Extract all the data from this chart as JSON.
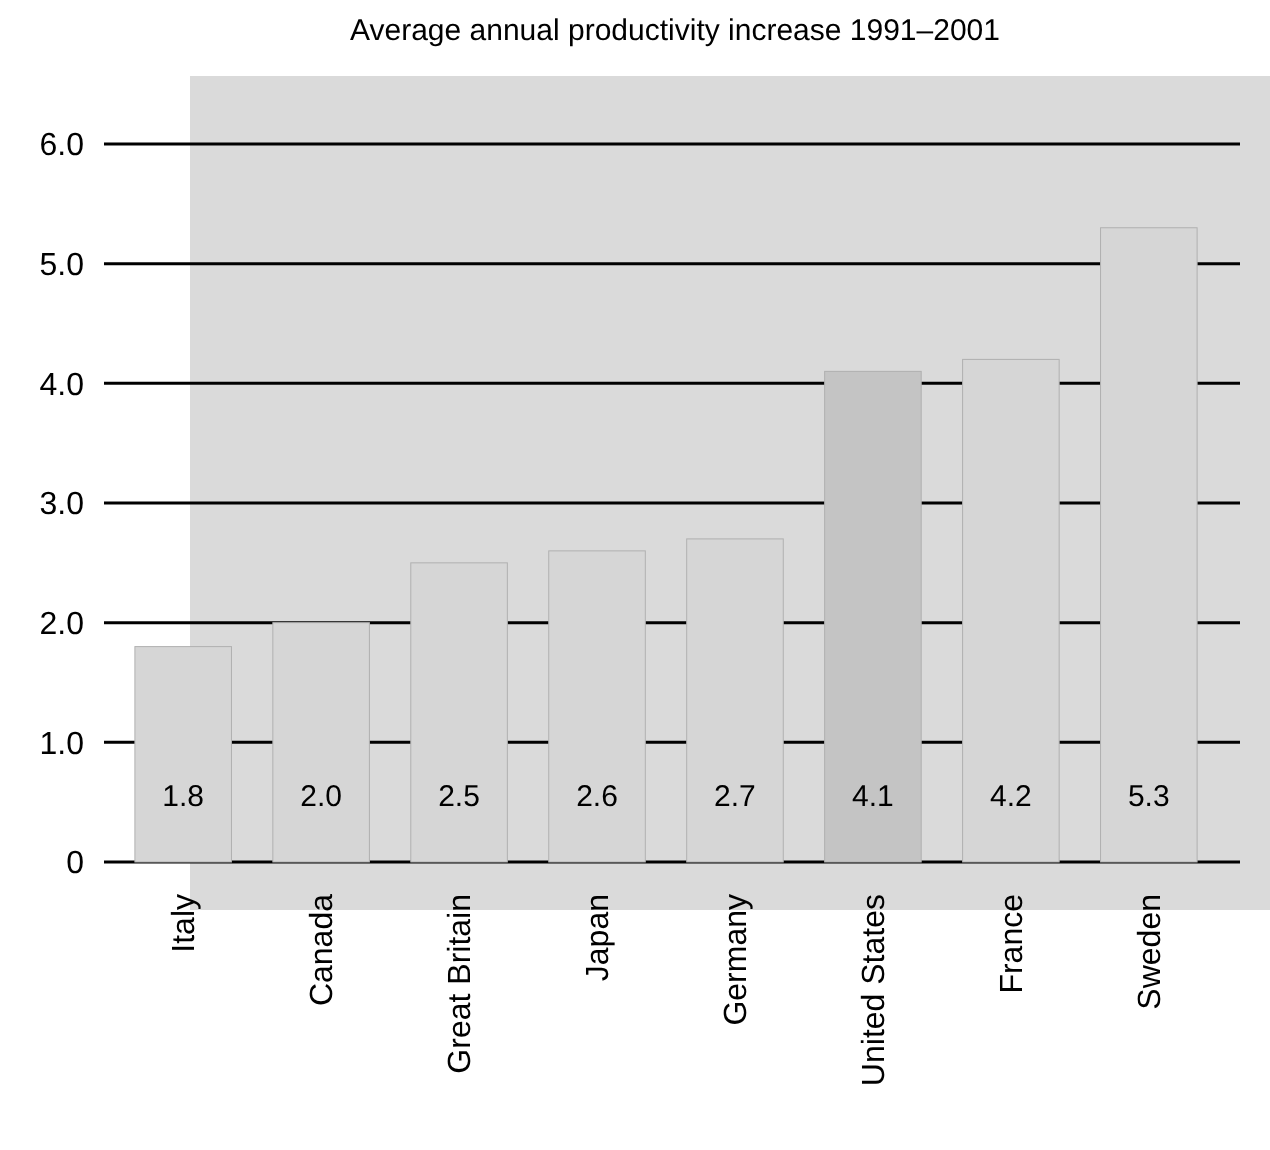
{
  "chart_data": {
    "type": "bar",
    "title": "Average annual productivity increase 1991–2001",
    "categories": [
      "Italy",
      "Canada",
      "Great Britain",
      "Japan",
      "Germany",
      "United States",
      "France",
      "Sweden"
    ],
    "values": [
      1.8,
      2.0,
      2.5,
      2.6,
      2.7,
      4.1,
      4.2,
      5.3
    ],
    "colors": [
      "#d6d6d6",
      "#d6d6d6",
      "#d6d6d6",
      "#d6d6d6",
      "#d6d6d6",
      "#c4c4c4",
      "#d6d6d6",
      "#d6d6d6"
    ],
    "value_labels": [
      "1.8",
      "2.0",
      "2.5",
      "2.6",
      "2.7",
      "4.1",
      "4.2",
      "5.3"
    ],
    "ylim": [
      0,
      6
    ],
    "yticks": [
      {
        "value": 0,
        "label": "0"
      },
      {
        "value": 1,
        "label": "1.0"
      },
      {
        "value": 2,
        "label": "2.0"
      },
      {
        "value": 3,
        "label": "3.0"
      },
      {
        "value": 4,
        "label": "4.0"
      },
      {
        "value": 5,
        "label": "5.0"
      },
      {
        "value": 6,
        "label": "6.0"
      }
    ],
    "grid": "y"
  }
}
